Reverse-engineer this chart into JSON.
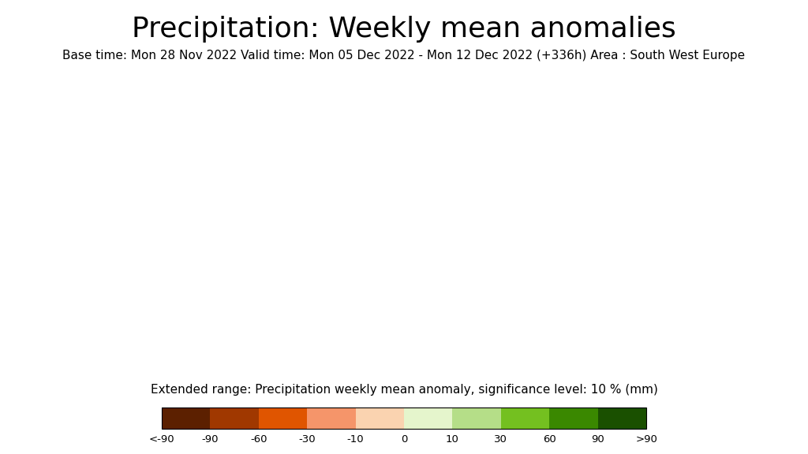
{
  "title": "Precipitation: Weekly mean anomalies",
  "subtitle": "Base time: Mon 28 Nov 2022 Valid time: Mon 05 Dec 2022 - Mon 12 Dec 2022 (+336h) Area : South West Europe",
  "colorbar_label": "Extended range: Precipitation weekly mean anomaly, significance level: 10 % (mm)",
  "colorbar_ticks": [
    "<-90",
    "-90",
    "-60",
    "-30",
    "-10",
    "0",
    "10",
    "30",
    "60",
    "90",
    ">90"
  ],
  "colorbar_colors": [
    "#5c2000",
    "#a03800",
    "#e05500",
    "#f5956a",
    "#fad3b0",
    "#e5f5cc",
    "#b5de88",
    "#74c020",
    "#3a8800",
    "#1a5000"
  ],
  "figure_background": "#ffffff",
  "title_fontsize": 26,
  "subtitle_fontsize": 11,
  "colorbar_label_fontsize": 11,
  "map_extent": [
    -30,
    50,
    25,
    72
  ]
}
